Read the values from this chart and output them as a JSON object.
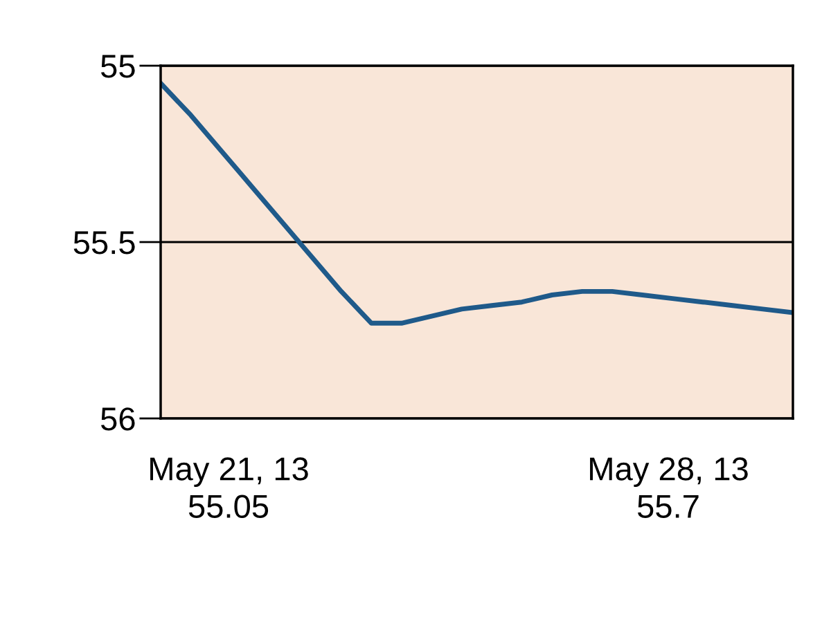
{
  "chart_data": {
    "type": "line",
    "categories": [
      null,
      null,
      null,
      null,
      null,
      null,
      null,
      null,
      null,
      null,
      null,
      null,
      null,
      null,
      null,
      null,
      null,
      null,
      null,
      null,
      null,
      null
    ],
    "series": [
      {
        "color": "#1f5a8a",
        "values": [
          55.05,
          55.14,
          55.24,
          55.34,
          55.44,
          55.54,
          55.64,
          55.73,
          55.73,
          55.71,
          55.69,
          55.68,
          55.67,
          55.65,
          55.64,
          55.64,
          55.65,
          55.66,
          55.67,
          55.68,
          55.69,
          55.7
        ]
      }
    ],
    "ylim": [
      56,
      55
    ],
    "yticks": [
      55,
      55.5,
      56
    ],
    "grid": "y",
    "marker": "none",
    "line_style": "solid",
    "tick_labels": "y",
    "annotations": [
      "May 21, 13\n55.05",
      "May 28, 13\n55.7"
    ]
  }
}
